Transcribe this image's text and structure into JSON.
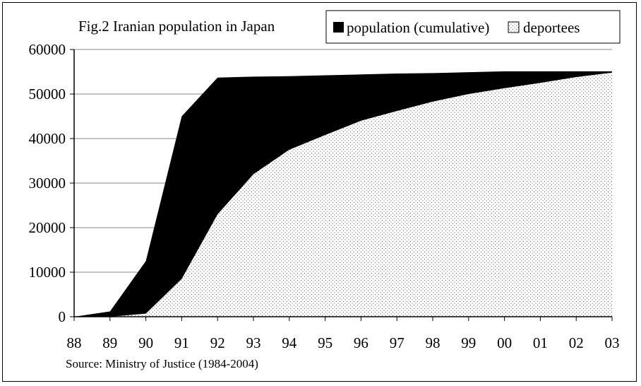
{
  "chart_data": {
    "type": "area",
    "title": "Fig.2 Iranian population in Japan",
    "source": "Source: Ministry of Justice (1984-2004)",
    "x": [
      "88",
      "89",
      "90",
      "91",
      "92",
      "93",
      "94",
      "95",
      "96",
      "97",
      "98",
      "99",
      "00",
      "01",
      "02",
      "03"
    ],
    "ylim": [
      0,
      60000
    ],
    "yticks": [
      0,
      10000,
      20000,
      30000,
      40000,
      50000,
      60000
    ],
    "grid": "horizontal",
    "legend_placement": "top-right",
    "series": [
      {
        "name": "population (cumulative)",
        "fill": "#000000",
        "values": [
          0,
          1200,
          12500,
          45000,
          53700,
          53900,
          54000,
          54200,
          54400,
          54600,
          54700,
          54900,
          55100,
          55100,
          55100,
          55100
        ]
      },
      {
        "name": "deportees",
        "fill": "dotted",
        "values": [
          0,
          0,
          700,
          8500,
          23000,
          32000,
          37500,
          40800,
          44000,
          46200,
          48300,
          50000,
          51300,
          52500,
          53800,
          54800
        ]
      }
    ]
  }
}
